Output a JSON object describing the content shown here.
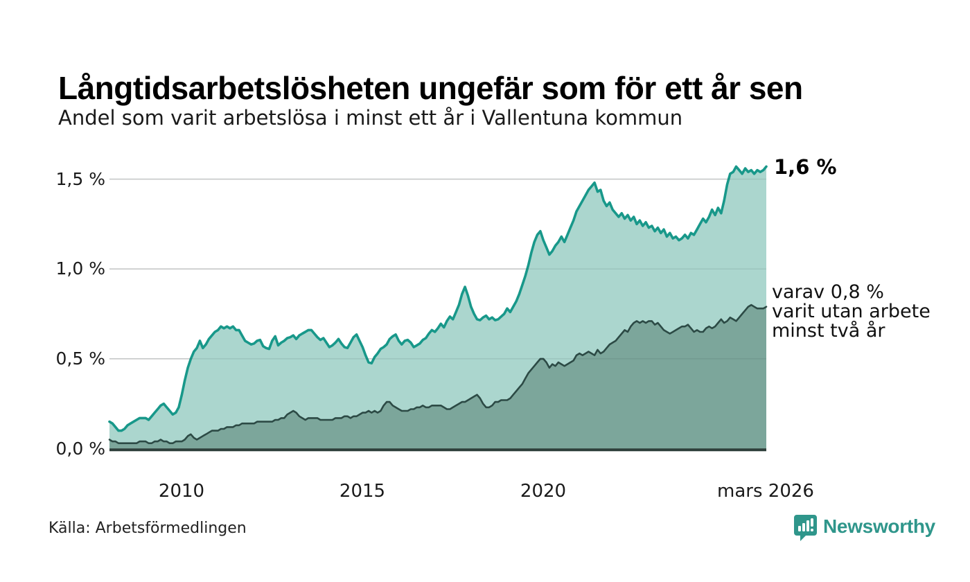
{
  "header": {
    "title": "Långtidsarbetslösheten ungefär som för ett år sen",
    "subtitle": "Andel som varit arbetslösa i minst ett år i Vallentuna kommun"
  },
  "annotations": {
    "latest_total": "1,6 %",
    "secondary_line1": "varav 0,8 %",
    "secondary_line2": "varit utan arbete",
    "secondary_line3": "minst två år"
  },
  "y_axis": {
    "labels": [
      "1,5 %",
      "1,0 %",
      "0,5 %",
      "0,0 %"
    ]
  },
  "x_axis": {
    "labels": [
      "2010",
      "2015",
      "2020",
      "mars 2026"
    ]
  },
  "footer": {
    "source": "Källa: Arbetsförmedlingen",
    "logo_text": "Newsworthy"
  },
  "colors": {
    "line_total": "#18988a",
    "area_total": "#abd6ce",
    "line_twoyear": "#2c4a45",
    "area_twoyear": "#7ca69b",
    "gridline": "#d9d9d9",
    "gridline_overlay": "rgba(40,60,55,0.10)",
    "axis_baseline": "#2e3f3b",
    "logo_teal": "#2f968b",
    "text_black": "#000000"
  },
  "chart_data": {
    "type": "area",
    "title": "Långtidsarbetslösheten ungefär som för ett år sen",
    "subtitle": "Andel som varit arbetslösa i minst ett år i Vallentuna kommun",
    "unit": "%",
    "frequency": "monthly",
    "x_start": "2008-01",
    "x_end": "2026-03",
    "x_tick_labels": [
      "2010",
      "2015",
      "2020",
      "mars 2026"
    ],
    "x_tick_positions": [
      2010.0,
      2015.0,
      2020.0,
      2026.17
    ],
    "ylim": [
      0,
      1.65
    ],
    "y_ticks": [
      0.0,
      0.5,
      1.0,
      1.5
    ],
    "grid": true,
    "legend_position": "inline-right",
    "series": [
      {
        "name": "Andel arbetslösa minst ett år",
        "latest_label": "1,6 %",
        "latest_value": 1.57,
        "values": [
          0.15,
          0.14,
          0.12,
          0.1,
          0.1,
          0.11,
          0.13,
          0.14,
          0.15,
          0.16,
          0.17,
          0.17,
          0.17,
          0.16,
          0.18,
          0.2,
          0.22,
          0.24,
          0.25,
          0.23,
          0.21,
          0.19,
          0.2,
          0.23,
          0.3,
          0.38,
          0.45,
          0.5,
          0.54,
          0.56,
          0.6,
          0.56,
          0.58,
          0.61,
          0.63,
          0.65,
          0.66,
          0.68,
          0.67,
          0.68,
          0.67,
          0.68,
          0.66,
          0.66,
          0.63,
          0.6,
          0.59,
          0.58,
          0.585,
          0.6,
          0.605,
          0.57,
          0.56,
          0.555,
          0.6,
          0.625,
          0.575,
          0.59,
          0.6,
          0.615,
          0.62,
          0.63,
          0.61,
          0.63,
          0.64,
          0.65,
          0.66,
          0.66,
          0.64,
          0.62,
          0.605,
          0.615,
          0.59,
          0.565,
          0.575,
          0.59,
          0.61,
          0.585,
          0.565,
          0.56,
          0.59,
          0.62,
          0.635,
          0.6,
          0.565,
          0.52,
          0.48,
          0.475,
          0.51,
          0.53,
          0.555,
          0.565,
          0.58,
          0.61,
          0.625,
          0.635,
          0.6,
          0.58,
          0.6,
          0.605,
          0.59,
          0.565,
          0.575,
          0.585,
          0.605,
          0.615,
          0.64,
          0.66,
          0.65,
          0.67,
          0.695,
          0.675,
          0.71,
          0.735,
          0.72,
          0.76,
          0.8,
          0.86,
          0.9,
          0.85,
          0.79,
          0.75,
          0.72,
          0.715,
          0.73,
          0.74,
          0.72,
          0.73,
          0.715,
          0.72,
          0.735,
          0.75,
          0.78,
          0.76,
          0.79,
          0.82,
          0.86,
          0.91,
          0.96,
          1.02,
          1.09,
          1.15,
          1.19,
          1.21,
          1.16,
          1.12,
          1.08,
          1.1,
          1.13,
          1.15,
          1.18,
          1.15,
          1.19,
          1.23,
          1.27,
          1.32,
          1.35,
          1.38,
          1.41,
          1.44,
          1.46,
          1.48,
          1.43,
          1.44,
          1.38,
          1.35,
          1.37,
          1.33,
          1.31,
          1.29,
          1.31,
          1.28,
          1.3,
          1.27,
          1.29,
          1.25,
          1.27,
          1.24,
          1.26,
          1.23,
          1.24,
          1.21,
          1.23,
          1.2,
          1.22,
          1.18,
          1.2,
          1.17,
          1.18,
          1.16,
          1.17,
          1.19,
          1.17,
          1.2,
          1.19,
          1.22,
          1.25,
          1.28,
          1.26,
          1.29,
          1.33,
          1.3,
          1.34,
          1.31,
          1.38,
          1.47,
          1.53,
          1.54,
          1.57,
          1.55,
          1.53,
          1.56,
          1.54,
          1.55,
          1.53,
          1.55,
          1.54,
          1.55,
          1.57
        ]
      },
      {
        "name": "varav utan arbete minst två år",
        "latest_label": "varav 0,8 % varit utan arbete minst två år",
        "latest_value": 0.79,
        "values": [
          0.05,
          0.04,
          0.04,
          0.03,
          0.03,
          0.03,
          0.03,
          0.03,
          0.03,
          0.03,
          0.04,
          0.04,
          0.04,
          0.03,
          0.03,
          0.04,
          0.04,
          0.05,
          0.04,
          0.04,
          0.03,
          0.03,
          0.04,
          0.04,
          0.04,
          0.05,
          0.07,
          0.08,
          0.06,
          0.05,
          0.06,
          0.07,
          0.08,
          0.09,
          0.1,
          0.1,
          0.1,
          0.11,
          0.11,
          0.12,
          0.12,
          0.12,
          0.13,
          0.13,
          0.14,
          0.14,
          0.14,
          0.14,
          0.14,
          0.15,
          0.15,
          0.15,
          0.15,
          0.15,
          0.15,
          0.16,
          0.16,
          0.17,
          0.17,
          0.19,
          0.2,
          0.21,
          0.2,
          0.18,
          0.17,
          0.16,
          0.17,
          0.17,
          0.17,
          0.17,
          0.16,
          0.16,
          0.16,
          0.16,
          0.16,
          0.17,
          0.17,
          0.17,
          0.18,
          0.18,
          0.17,
          0.18,
          0.18,
          0.19,
          0.2,
          0.2,
          0.21,
          0.2,
          0.21,
          0.2,
          0.21,
          0.24,
          0.26,
          0.26,
          0.24,
          0.23,
          0.22,
          0.21,
          0.21,
          0.21,
          0.22,
          0.22,
          0.23,
          0.23,
          0.24,
          0.23,
          0.23,
          0.24,
          0.24,
          0.24,
          0.24,
          0.23,
          0.22,
          0.22,
          0.23,
          0.24,
          0.25,
          0.26,
          0.26,
          0.27,
          0.28,
          0.29,
          0.3,
          0.28,
          0.25,
          0.23,
          0.23,
          0.24,
          0.26,
          0.26,
          0.27,
          0.27,
          0.27,
          0.28,
          0.3,
          0.32,
          0.34,
          0.36,
          0.39,
          0.42,
          0.44,
          0.46,
          0.48,
          0.5,
          0.5,
          0.48,
          0.45,
          0.47,
          0.46,
          0.48,
          0.47,
          0.46,
          0.47,
          0.48,
          0.49,
          0.52,
          0.53,
          0.52,
          0.53,
          0.54,
          0.53,
          0.52,
          0.55,
          0.53,
          0.54,
          0.56,
          0.58,
          0.59,
          0.6,
          0.62,
          0.64,
          0.66,
          0.65,
          0.68,
          0.7,
          0.71,
          0.7,
          0.71,
          0.7,
          0.71,
          0.71,
          0.69,
          0.7,
          0.68,
          0.66,
          0.65,
          0.64,
          0.65,
          0.66,
          0.67,
          0.68,
          0.68,
          0.69,
          0.67,
          0.65,
          0.66,
          0.65,
          0.65,
          0.67,
          0.68,
          0.67,
          0.68,
          0.7,
          0.72,
          0.7,
          0.71,
          0.73,
          0.72,
          0.71,
          0.73,
          0.75,
          0.77,
          0.79,
          0.8,
          0.79,
          0.78,
          0.78,
          0.78,
          0.79
        ]
      }
    ]
  }
}
